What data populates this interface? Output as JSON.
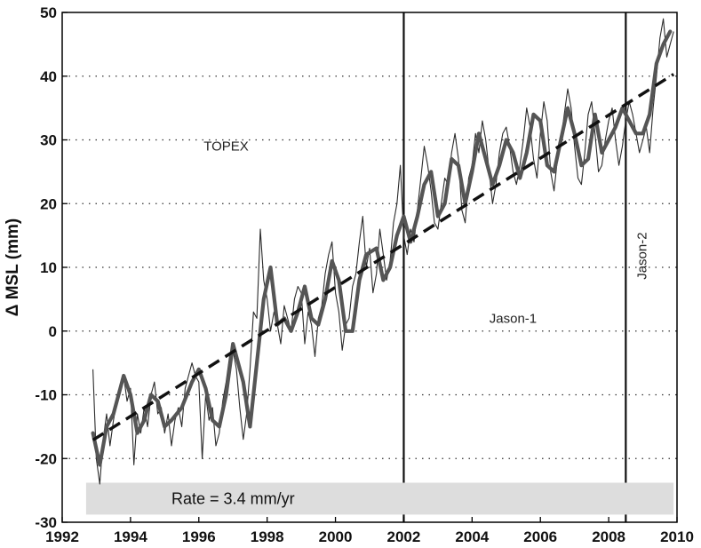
{
  "chart_data": {
    "type": "line",
    "title": "",
    "xlabel": "",
    "ylabel": "Δ MSL (mm)",
    "xlim": [
      1992,
      2010
    ],
    "ylim": [
      -30,
      50
    ],
    "x_ticks": [
      1992,
      1994,
      1996,
      1998,
      2000,
      2002,
      2004,
      2006,
      2008,
      2010
    ],
    "y_ticks": [
      -30,
      -20,
      -10,
      0,
      10,
      20,
      30,
      40,
      50
    ],
    "grid": "dotted horizontal",
    "missions": [
      {
        "name": "TOPEX",
        "start": 1992.9,
        "end": 2002.0
      },
      {
        "name": "Jason-1",
        "start": 2002.0,
        "end": 2008.5
      },
      {
        "name": "Jason-2",
        "start": 2008.5,
        "end": 2009.9
      }
    ],
    "rate_annotation": "Rate = 3.4 mm/yr",
    "trend": {
      "x": [
        1992.9,
        2009.9
      ],
      "y": [
        -17.1,
        40.3
      ]
    },
    "series": [
      {
        "style": "smoothed",
        "x": [
          1992.9,
          1993.1,
          1993.3,
          1993.5,
          1993.8,
          1994.0,
          1994.2,
          1994.4,
          1994.6,
          1994.8,
          1995.0,
          1995.2,
          1995.5,
          1995.8,
          1996.0,
          1996.2,
          1996.4,
          1996.6,
          1996.8,
          1997.0,
          1997.3,
          1997.5,
          1997.7,
          1997.9,
          1998.1,
          1998.3,
          1998.5,
          1998.7,
          1998.9,
          1999.1,
          1999.3,
          1999.5,
          1999.7,
          1999.9,
          2000.1,
          2000.3,
          2000.5,
          2000.7,
          2000.9,
          2001.2,
          2001.4,
          2001.6,
          2001.8,
          2002.0,
          2002.2,
          2002.4,
          2002.6,
          2002.8,
          2003.0,
          2003.2,
          2003.4,
          2003.6,
          2003.8,
          2004.0,
          2004.2,
          2004.4,
          2004.6,
          2004.8,
          2005.0,
          2005.2,
          2005.4,
          2005.6,
          2005.8,
          2006.0,
          2006.2,
          2006.4,
          2006.6,
          2006.8,
          2007.0,
          2007.2,
          2007.4,
          2007.6,
          2007.8,
          2008.0,
          2008.2,
          2008.4,
          2008.6,
          2008.8,
          2009.0,
          2009.2,
          2009.4,
          2009.6,
          2009.8
        ],
        "y": [
          -16,
          -21,
          -15,
          -13,
          -7,
          -10,
          -16,
          -14,
          -10,
          -11,
          -15,
          -14,
          -12,
          -8,
          -6,
          -9,
          -14,
          -15,
          -10,
          -2,
          -8,
          -15,
          -5,
          5,
          10,
          1,
          2,
          0,
          3,
          7,
          2,
          1,
          5,
          11,
          8,
          0,
          0,
          8,
          12,
          13,
          8,
          10,
          15,
          18,
          14,
          18,
          23,
          25,
          18,
          20,
          27,
          26,
          20,
          25,
          31,
          27,
          23,
          26,
          30,
          28,
          24,
          28,
          34,
          33,
          26,
          25,
          30,
          35,
          31,
          26,
          27,
          34,
          28,
          30,
          32,
          35,
          33,
          31,
          31,
          34,
          42,
          45,
          47
        ]
      },
      {
        "style": "raw",
        "x": [
          1992.9,
          1993.0,
          1993.1,
          1993.2,
          1993.3,
          1993.4,
          1993.5,
          1993.6,
          1993.7,
          1993.8,
          1993.9,
          1994.0,
          1994.1,
          1994.2,
          1994.3,
          1994.4,
          1994.5,
          1994.6,
          1994.7,
          1994.8,
          1994.9,
          1995.0,
          1995.1,
          1995.2,
          1995.3,
          1995.4,
          1995.5,
          1995.6,
          1995.7,
          1995.8,
          1995.9,
          1996.0,
          1996.1,
          1996.2,
          1996.3,
          1996.4,
          1996.5,
          1996.6,
          1996.7,
          1996.8,
          1996.9,
          1997.0,
          1997.1,
          1997.2,
          1997.3,
          1997.4,
          1997.5,
          1997.6,
          1997.7,
          1997.8,
          1997.9,
          1998.0,
          1998.1,
          1998.2,
          1998.3,
          1998.4,
          1998.5,
          1998.6,
          1998.7,
          1998.8,
          1998.9,
          1999.0,
          1999.1,
          1999.2,
          1999.3,
          1999.4,
          1999.5,
          1999.6,
          1999.7,
          1999.8,
          1999.9,
          2000.0,
          2000.1,
          2000.2,
          2000.3,
          2000.4,
          2000.5,
          2000.6,
          2000.7,
          2000.8,
          2000.9,
          2001.0,
          2001.1,
          2001.2,
          2001.3,
          2001.4,
          2001.5,
          2001.6,
          2001.7,
          2001.8,
          2001.9,
          2002.0,
          2002.1,
          2002.2,
          2002.3,
          2002.4,
          2002.5,
          2002.6,
          2002.7,
          2002.8,
          2002.9,
          2003.0,
          2003.1,
          2003.2,
          2003.3,
          2003.4,
          2003.5,
          2003.6,
          2003.7,
          2003.8,
          2003.9,
          2004.0,
          2004.1,
          2004.2,
          2004.3,
          2004.4,
          2004.5,
          2004.6,
          2004.7,
          2004.8,
          2004.9,
          2005.0,
          2005.1,
          2005.2,
          2005.3,
          2005.4,
          2005.5,
          2005.6,
          2005.7,
          2005.8,
          2005.9,
          2006.0,
          2006.1,
          2006.2,
          2006.3,
          2006.4,
          2006.5,
          2006.6,
          2006.7,
          2006.8,
          2006.9,
          2007.0,
          2007.1,
          2007.2,
          2007.3,
          2007.4,
          2007.5,
          2007.6,
          2007.7,
          2007.8,
          2007.9,
          2008.0,
          2008.1,
          2008.2,
          2008.3,
          2008.4,
          2008.5,
          2008.6,
          2008.7,
          2008.8,
          2008.9,
          2009.0,
          2009.1,
          2009.2,
          2009.3,
          2009.4,
          2009.5,
          2009.6,
          2009.7,
          2009.8,
          2009.9
        ],
        "y": [
          -6,
          -20,
          -24,
          -17,
          -13,
          -18,
          -14,
          -11,
          -9,
          -7,
          -11,
          -9,
          -21,
          -13,
          -16,
          -12,
          -15,
          -10,
          -8,
          -13,
          -12,
          -16,
          -13,
          -18,
          -14,
          -12,
          -15,
          -9,
          -7,
          -5,
          -7,
          -8,
          -20,
          -10,
          -14,
          -12,
          -18,
          -16,
          -11,
          -8,
          -4,
          -3,
          -6,
          -12,
          -17,
          -13,
          -6,
          3,
          2,
          16,
          8,
          5,
          0,
          3,
          1,
          -2,
          4,
          2,
          0,
          5,
          7,
          6,
          -2,
          3,
          1,
          -4,
          2,
          4,
          9,
          12,
          14,
          6,
          3,
          -3,
          1,
          2,
          7,
          9,
          14,
          18,
          10,
          13,
          6,
          9,
          16,
          12,
          8,
          11,
          17,
          20,
          26,
          15,
          12,
          16,
          14,
          19,
          24,
          29,
          26,
          22,
          17,
          16,
          20,
          24,
          23,
          28,
          31,
          27,
          19,
          17,
          24,
          26,
          31,
          28,
          33,
          30,
          25,
          20,
          23,
          28,
          31,
          32,
          29,
          25,
          23,
          26,
          30,
          35,
          32,
          27,
          24,
          31,
          36,
          33,
          25,
          22,
          27,
          30,
          34,
          38,
          35,
          29,
          24,
          23,
          28,
          34,
          36,
          31,
          25,
          26,
          30,
          33,
          35,
          30,
          26,
          29,
          33,
          36,
          34,
          31,
          28,
          30,
          32,
          28,
          35,
          40,
          46,
          49,
          43,
          45,
          47
        ]
      }
    ]
  }
}
